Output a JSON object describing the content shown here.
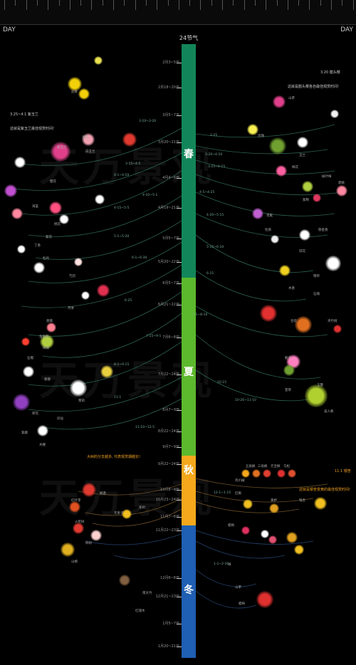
{
  "header": {
    "title": "24节气",
    "day_left": "DAY",
    "day_right": "DAY"
  },
  "seasons": [
    {
      "key": "spring",
      "label": "春",
      "color": "#12865a"
    },
    {
      "key": "summer",
      "label": "夏",
      "color": "#5cb82d"
    },
    {
      "key": "autumn",
      "label": "秋",
      "color": "#f5a81c"
    },
    {
      "key": "winter",
      "label": "冬",
      "color": "#1f5fb4"
    }
  ],
  "solar_terms": [
    "2月3~5日",
    "2月18~20日",
    "3月5~7日",
    "3月20~21日",
    "4月4~6日",
    "4月19~21日",
    "5月5~7日",
    "5月20~22日",
    "6月5~7日",
    "6月21~22日",
    "7月6~8日",
    "7月22~24日",
    "8月7~9日",
    "8月22~24日",
    "9月7~9日",
    "9月22~24日",
    "10月8~9日",
    "10月23~24日",
    "11月7~8日",
    "11月22~23日",
    "12月6~8日",
    "12月21~23日",
    "1月5~7日",
    "1月20~21日"
  ],
  "notes": {
    "spring_left": "3.25~4.1 紫玉兰",
    "spring_left_sub": "这就是紫玉兰最佳观赏时间!",
    "spring_right": "3.20 腊头樱",
    "spring_right_sub": "这就是腊头樱各自最佳观赏时间!",
    "autumn_left": "大树的分支越多, 代表观赏期越长!",
    "autumn_right": "11.1 银杏",
    "autumn_right_sub": "这就是银杏变黄的最佳观赏时间!"
  },
  "plant_labels": {
    "left": [
      "迎春",
      "紫玉兰",
      "杏花",
      "白玉兰",
      "樱花",
      "海棠",
      "桃花",
      "梨花",
      "丁香",
      "牡丹",
      "芍药",
      "月季",
      "蔷薇",
      "金银花",
      "绣球",
      "石榴",
      "紫薇",
      "茉莉",
      "荷花",
      "凤仙",
      "木槿",
      "紫藤"
    ],
    "right": [
      "山茶",
      "连翘",
      "玉兰",
      "梅花",
      "榆叶梅",
      "碧桃",
      "紫荆",
      "鸢尾",
      "杜鹃",
      "郁金香",
      "琼花",
      "锦带",
      "木香",
      "石楠",
      "合欢",
      "夹竹桃",
      "栀子",
      "玉簪",
      "萱草",
      "美人蕉"
    ],
    "autumn": [
      "鸡爪槭",
      "五角枫",
      "三角枫",
      "元宝枫",
      "乌桕",
      "红枫",
      "黄栌",
      "银杏",
      "红叶李",
      "枫香",
      "无患子",
      "栾树",
      "火炬树",
      "柿树",
      "山楂",
      "蜡梅"
    ],
    "winter": [
      "梅",
      "山茶",
      "蜡梅",
      "南天竹",
      "红瑞木"
    ]
  },
  "date_labels": [
    "2-25",
    "3-10~3-20",
    "3-15~4-5",
    "3-20~4-10",
    "3-25~4-15",
    "4-1~4-20",
    "4-5~4-25",
    "4-10~5-1",
    "4-15~5-5",
    "4-20~5-15",
    "5-1~5-20",
    "5-15~6-10",
    "6-1~6-30",
    "6-15",
    "6-25",
    "7-1~8-10",
    "7-15~9-1",
    "8-1~9-15",
    "10-15",
    "10-20~11-10",
    "11-1",
    "11-10~12-5",
    "12-1~1-15",
    "1-1~2-20"
  ],
  "watermark": "天万景观"
}
